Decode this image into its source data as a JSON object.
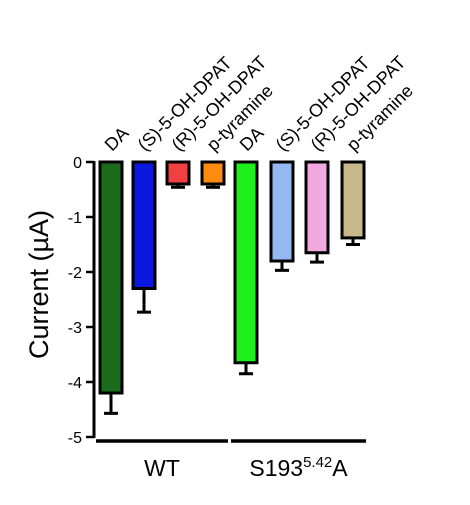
{
  "chart_data": {
    "type": "bar",
    "ylabel": "Current (µA)",
    "ylim": [
      -5,
      0
    ],
    "yticks": [
      0,
      -1,
      -2,
      -3,
      -4,
      -5
    ],
    "grid": false,
    "categories": [
      "DA",
      "(S)-5-OH-DPAT",
      "(R)-5-OH-DPAT",
      "p-tyramine",
      "DA",
      "(S)-5-OH-DPAT",
      "(R)-5-OH-DPAT",
      "p-tyramine"
    ],
    "values": [
      -4.2,
      -2.3,
      -0.4,
      -0.4,
      -3.65,
      -1.8,
      -1.65,
      -1.38
    ],
    "errors": [
      0.37,
      0.43,
      0.06,
      0.06,
      0.2,
      0.17,
      0.17,
      0.12
    ],
    "colors": [
      "#1a6b1a",
      "#0a18e0",
      "#f04040",
      "#ff8a10",
      "#1ef01e",
      "#94b8f0",
      "#f4a8e0",
      "#c8b88a"
    ],
    "groups": [
      {
        "label": "WT",
        "superscript": "",
        "suffix": "",
        "start": 0,
        "end": 3
      },
      {
        "label": "S193",
        "superscript": "5.42",
        "suffix": "A",
        "start": 4,
        "end": 7
      }
    ]
  }
}
